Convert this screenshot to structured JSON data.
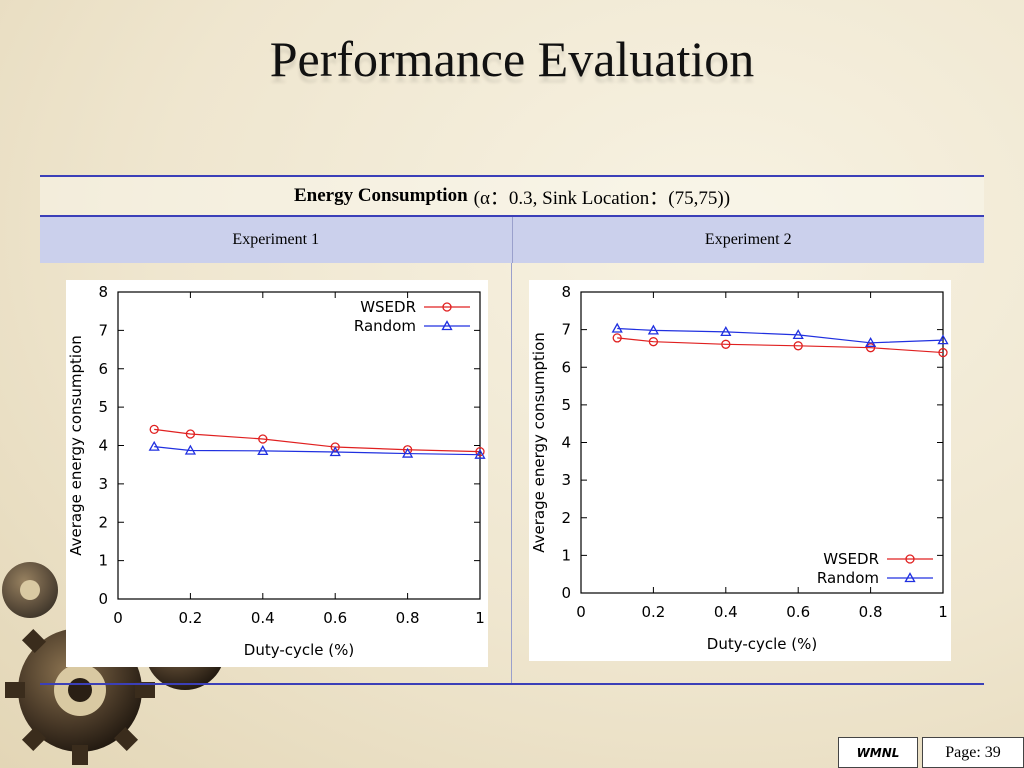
{
  "slide": {
    "title": "Performance Evaluation",
    "caption_bold": "Energy Consumption",
    "caption_rest": "(α：0.3, Sink Location：(75,75))",
    "columns": [
      "Experiment 1",
      "Experiment 2"
    ],
    "footer": {
      "badge": "WMNL",
      "page": "Page: 39"
    }
  },
  "chart_data": [
    {
      "type": "line",
      "xlabel": "Duty-cycle (%)",
      "ylabel": "Average energy consumption",
      "xlim": [
        0,
        1
      ],
      "ylim": [
        0,
        8
      ],
      "xticks": [
        "0",
        "0.2",
        "0.4",
        "0.6",
        "0.8",
        "1"
      ],
      "yticks": [
        "0",
        "1",
        "2",
        "3",
        "4",
        "5",
        "6",
        "7",
        "8"
      ],
      "legend": "top-right",
      "x": [
        0.1,
        0.2,
        0.4,
        0.6,
        0.8,
        1.0
      ],
      "series": [
        {
          "name": "WSEDR",
          "color": "#e02020",
          "marker": "circle",
          "values": [
            4.42,
            4.3,
            4.17,
            3.96,
            3.89,
            3.84
          ]
        },
        {
          "name": "Random",
          "color": "#2030e0",
          "marker": "triangle",
          "values": [
            3.97,
            3.87,
            3.86,
            3.83,
            3.79,
            3.76
          ]
        }
      ]
    },
    {
      "type": "line",
      "xlabel": "Duty-cycle (%)",
      "ylabel": "Average energy consumption",
      "xlim": [
        0,
        1
      ],
      "ylim": [
        0,
        8
      ],
      "xticks": [
        "0",
        "0.2",
        "0.4",
        "0.6",
        "0.8",
        "1"
      ],
      "yticks": [
        "0",
        "1",
        "2",
        "3",
        "4",
        "5",
        "6",
        "7",
        "8"
      ],
      "legend": "bottom-right",
      "x": [
        0.1,
        0.2,
        0.4,
        0.6,
        0.8,
        1.0
      ],
      "series": [
        {
          "name": "WSEDR",
          "color": "#e02020",
          "marker": "circle",
          "values": [
            6.78,
            6.68,
            6.61,
            6.57,
            6.52,
            6.39
          ]
        },
        {
          "name": "Random",
          "color": "#2030e0",
          "marker": "triangle",
          "values": [
            7.03,
            6.98,
            6.94,
            6.86,
            6.65,
            6.72
          ]
        }
      ]
    }
  ]
}
